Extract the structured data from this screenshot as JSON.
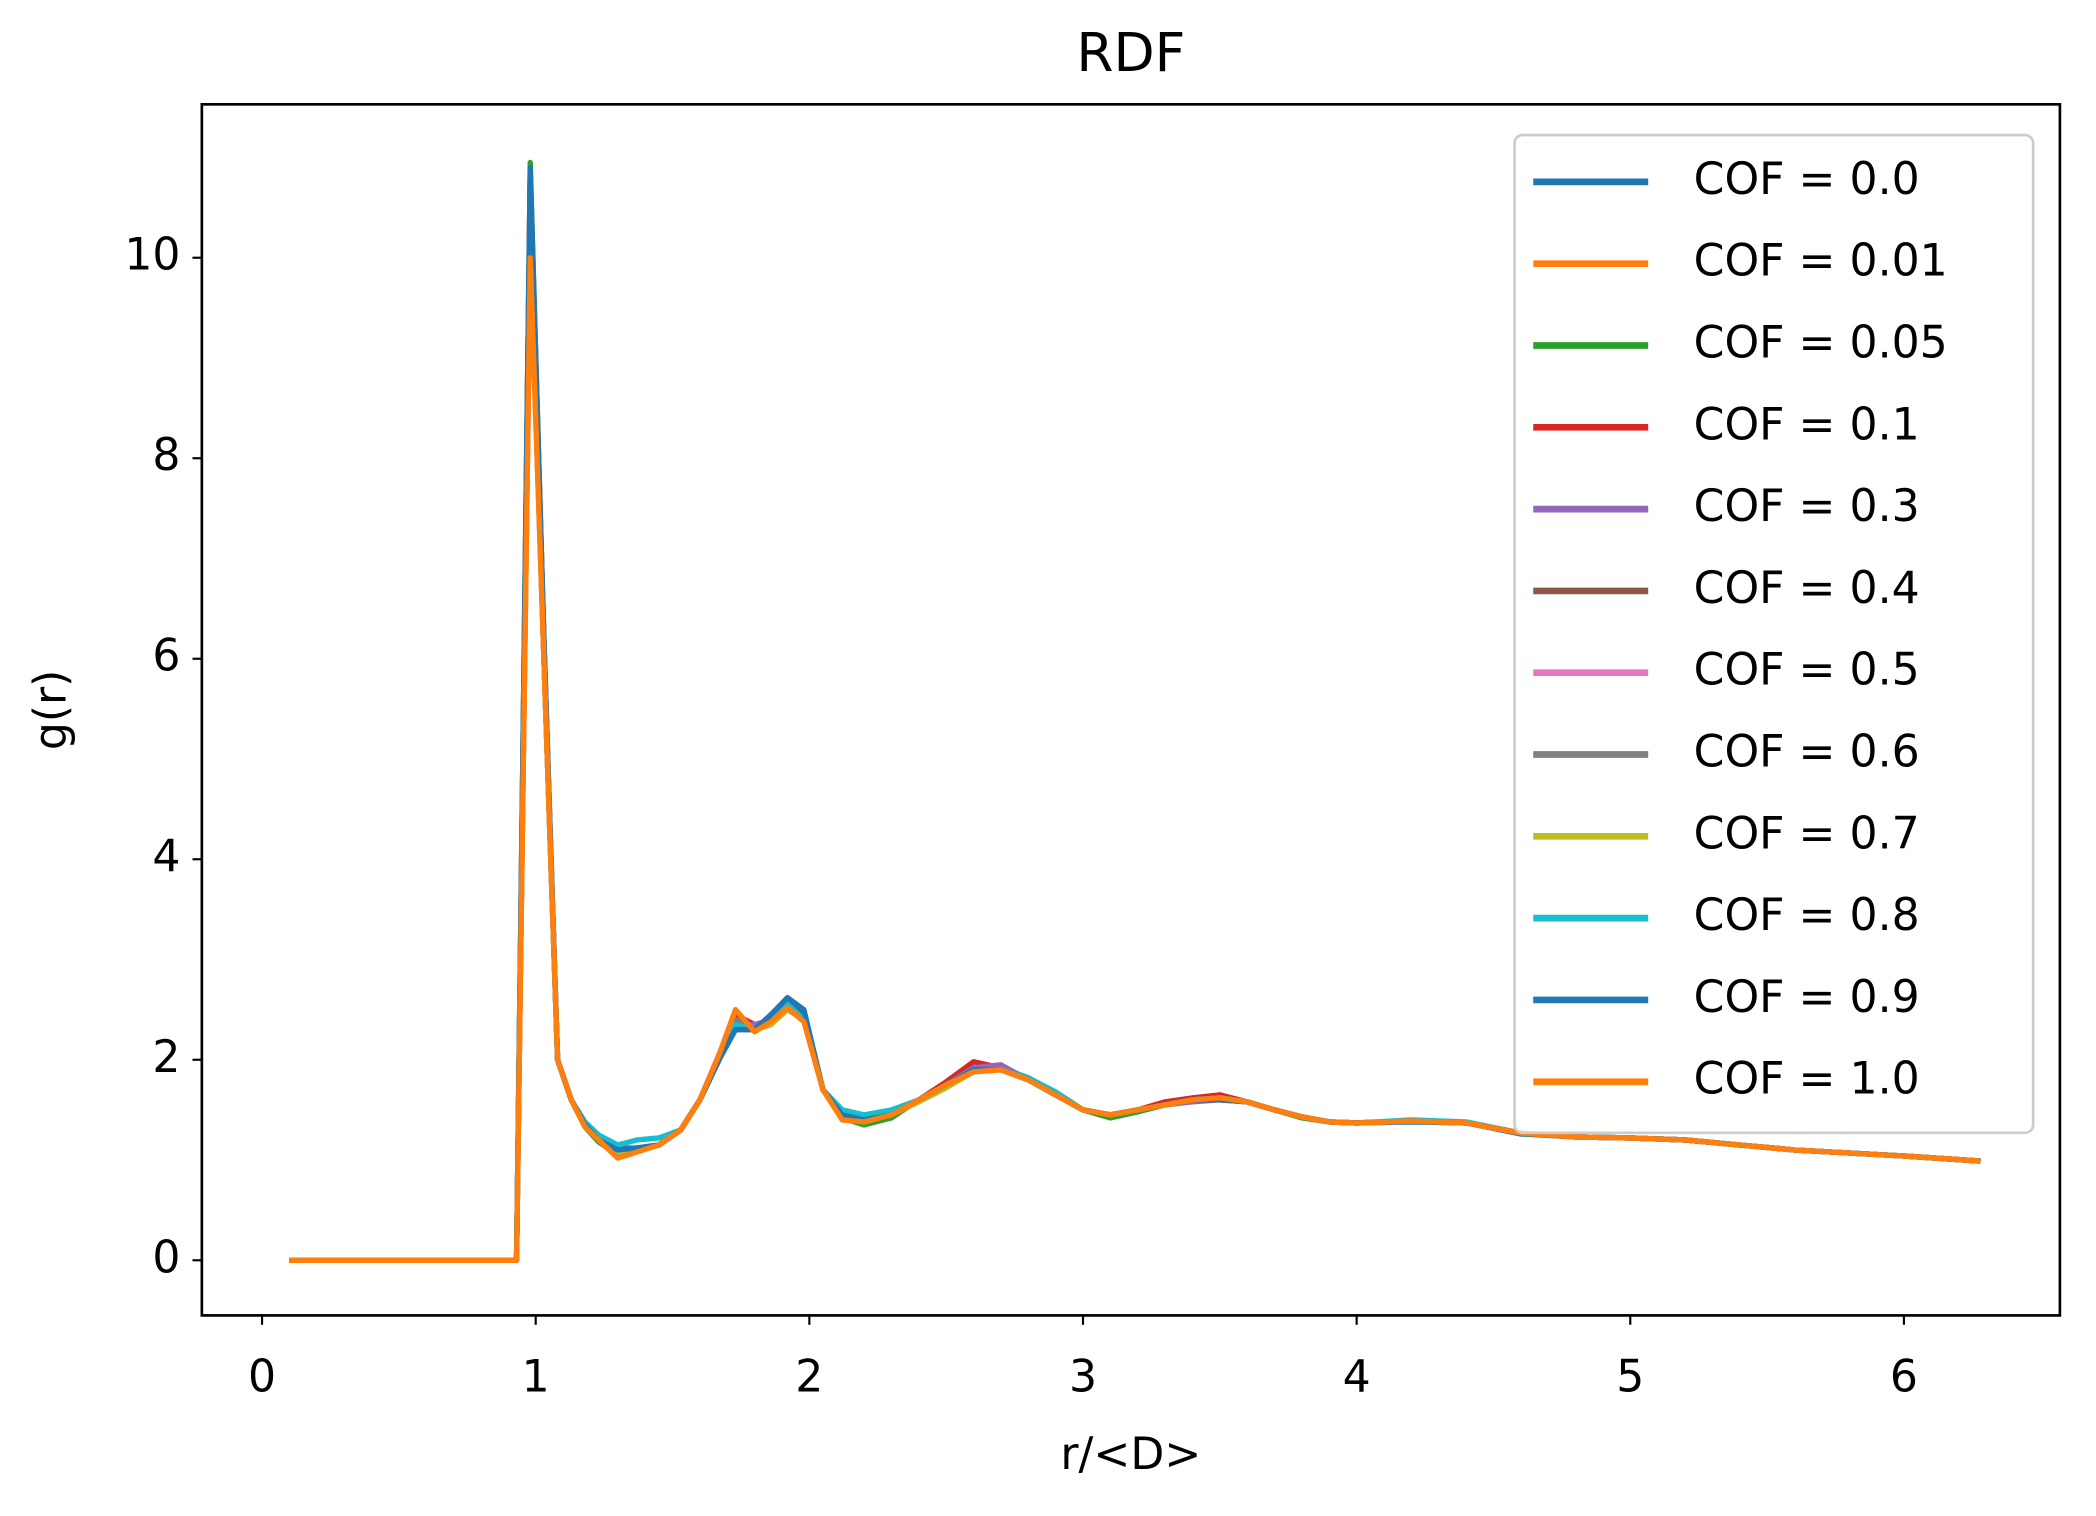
{
  "chart_data": {
    "type": "line",
    "title": "RDF",
    "xlabel": "r/<D>",
    "ylabel": "g(r)",
    "xlim": [
      -0.22,
      6.57
    ],
    "ylim": [
      -0.55,
      11.53
    ],
    "xticks": [
      0,
      1,
      2,
      3,
      4,
      5,
      6
    ],
    "yticks": [
      0,
      2,
      4,
      6,
      8,
      10
    ],
    "legend": "upper right",
    "grid": false,
    "x": [
      0.1,
      0.9,
      0.93,
      0.98,
      1.03,
      1.08,
      1.13,
      1.18,
      1.23,
      1.3,
      1.37,
      1.45,
      1.53,
      1.6,
      1.67,
      1.73,
      1.8,
      1.86,
      1.92,
      1.98,
      2.05,
      2.12,
      2.2,
      2.3,
      2.4,
      2.5,
      2.6,
      2.7,
      2.8,
      2.9,
      3.0,
      3.1,
      3.2,
      3.3,
      3.4,
      3.5,
      3.6,
      3.7,
      3.8,
      3.9,
      4.0,
      4.2,
      4.4,
      4.6,
      4.8,
      5.0,
      5.2,
      5.4,
      5.6,
      5.8,
      6.0,
      6.28
    ],
    "series": [
      {
        "name": "COF = 0.0",
        "color": "#1f77b4",
        "values": [
          0,
          0,
          0,
          10.1,
          6.0,
          2.0,
          1.6,
          1.35,
          1.2,
          1.12,
          1.12,
          1.15,
          1.3,
          1.6,
          2.0,
          2.35,
          2.3,
          2.45,
          2.6,
          2.45,
          1.7,
          1.45,
          1.4,
          1.45,
          1.6,
          1.75,
          1.9,
          1.9,
          1.8,
          1.65,
          1.5,
          1.45,
          1.5,
          1.55,
          1.6,
          1.6,
          1.58,
          1.5,
          1.43,
          1.38,
          1.37,
          1.38,
          1.37,
          1.26,
          1.23,
          1.22,
          1.2,
          1.15,
          1.1,
          1.07,
          1.04,
          0.99
        ]
      },
      {
        "name": "COF = 0.01",
        "color": "#ff7f0e",
        "values": [
          0,
          0,
          0,
          10.0,
          6.1,
          2.0,
          1.6,
          1.35,
          1.2,
          1.08,
          1.1,
          1.15,
          1.3,
          1.6,
          2.05,
          2.45,
          2.3,
          2.4,
          2.55,
          2.4,
          1.7,
          1.45,
          1.4,
          1.45,
          1.6,
          1.75,
          1.92,
          1.9,
          1.8,
          1.65,
          1.5,
          1.45,
          1.5,
          1.55,
          1.6,
          1.62,
          1.58,
          1.5,
          1.43,
          1.38,
          1.37,
          1.39,
          1.37,
          1.27,
          1.23,
          1.22,
          1.2,
          1.15,
          1.1,
          1.07,
          1.04,
          0.99
        ]
      },
      {
        "name": "COF = 0.05",
        "color": "#2ca02c",
        "values": [
          0,
          0,
          0,
          10.95,
          6.2,
          2.0,
          1.6,
          1.33,
          1.18,
          1.05,
          1.1,
          1.15,
          1.3,
          1.6,
          2.0,
          2.4,
          2.3,
          2.38,
          2.5,
          2.4,
          1.7,
          1.42,
          1.35,
          1.42,
          1.6,
          1.75,
          1.9,
          1.92,
          1.82,
          1.65,
          1.5,
          1.42,
          1.48,
          1.55,
          1.6,
          1.62,
          1.58,
          1.5,
          1.42,
          1.38,
          1.37,
          1.39,
          1.37,
          1.27,
          1.23,
          1.22,
          1.2,
          1.15,
          1.1,
          1.07,
          1.04,
          0.99
        ]
      },
      {
        "name": "COF = 0.1",
        "color": "#d62728",
        "values": [
          0,
          0,
          0,
          10.85,
          6.2,
          2.0,
          1.6,
          1.35,
          1.2,
          1.1,
          1.1,
          1.15,
          1.3,
          1.6,
          2.05,
          2.45,
          2.35,
          2.4,
          2.55,
          2.4,
          1.7,
          1.45,
          1.4,
          1.45,
          1.6,
          1.78,
          1.98,
          1.92,
          1.8,
          1.65,
          1.5,
          1.45,
          1.5,
          1.58,
          1.62,
          1.65,
          1.58,
          1.5,
          1.43,
          1.38,
          1.37,
          1.39,
          1.37,
          1.27,
          1.23,
          1.22,
          1.2,
          1.15,
          1.1,
          1.07,
          1.04,
          0.99
        ]
      },
      {
        "name": "COF = 0.3",
        "color": "#9467bd",
        "values": [
          0,
          0,
          0,
          10.5,
          6.1,
          2.0,
          1.6,
          1.35,
          1.2,
          1.1,
          1.12,
          1.15,
          1.3,
          1.6,
          2.0,
          2.35,
          2.35,
          2.4,
          2.55,
          2.4,
          1.7,
          1.45,
          1.4,
          1.45,
          1.6,
          1.75,
          1.92,
          1.95,
          1.8,
          1.65,
          1.5,
          1.45,
          1.5,
          1.55,
          1.58,
          1.6,
          1.58,
          1.5,
          1.43,
          1.38,
          1.37,
          1.39,
          1.37,
          1.27,
          1.23,
          1.22,
          1.2,
          1.15,
          1.1,
          1.07,
          1.04,
          0.99
        ]
      },
      {
        "name": "COF = 0.4",
        "color": "#8c564b",
        "values": [
          0,
          0,
          0,
          10.4,
          6.0,
          2.0,
          1.6,
          1.35,
          1.2,
          1.1,
          1.1,
          1.15,
          1.3,
          1.6,
          2.0,
          2.38,
          2.3,
          2.4,
          2.55,
          2.4,
          1.7,
          1.45,
          1.4,
          1.45,
          1.6,
          1.75,
          1.9,
          1.9,
          1.8,
          1.65,
          1.5,
          1.45,
          1.5,
          1.55,
          1.6,
          1.62,
          1.58,
          1.5,
          1.43,
          1.38,
          1.37,
          1.39,
          1.37,
          1.27,
          1.23,
          1.22,
          1.2,
          1.15,
          1.1,
          1.07,
          1.04,
          0.99
        ]
      },
      {
        "name": "COF = 0.5",
        "color": "#e377c2",
        "values": [
          0,
          0,
          0,
          10.2,
          6.0,
          2.0,
          1.6,
          1.35,
          1.2,
          1.1,
          1.1,
          1.15,
          1.3,
          1.6,
          2.0,
          2.4,
          2.3,
          2.4,
          2.55,
          2.4,
          1.7,
          1.45,
          1.4,
          1.45,
          1.6,
          1.75,
          1.9,
          1.9,
          1.8,
          1.65,
          1.5,
          1.45,
          1.5,
          1.55,
          1.6,
          1.62,
          1.58,
          1.5,
          1.43,
          1.38,
          1.37,
          1.39,
          1.37,
          1.27,
          1.23,
          1.22,
          1.2,
          1.15,
          1.1,
          1.07,
          1.04,
          0.99
        ]
      },
      {
        "name": "COF = 0.6",
        "color": "#7f7f7f",
        "values": [
          0,
          0,
          0,
          10.3,
          6.0,
          2.0,
          1.6,
          1.35,
          1.2,
          1.1,
          1.1,
          1.15,
          1.3,
          1.6,
          2.0,
          2.4,
          2.3,
          2.4,
          2.55,
          2.4,
          1.7,
          1.45,
          1.4,
          1.45,
          1.6,
          1.75,
          1.9,
          1.9,
          1.8,
          1.65,
          1.5,
          1.45,
          1.5,
          1.55,
          1.6,
          1.62,
          1.58,
          1.5,
          1.43,
          1.38,
          1.37,
          1.39,
          1.37,
          1.27,
          1.23,
          1.22,
          1.2,
          1.15,
          1.1,
          1.07,
          1.04,
          0.99
        ]
      },
      {
        "name": "COF = 0.7",
        "color": "#bcbd22",
        "values": [
          0,
          0,
          0,
          10.3,
          6.0,
          2.0,
          1.6,
          1.35,
          1.2,
          1.08,
          1.1,
          1.15,
          1.3,
          1.6,
          2.0,
          2.3,
          2.3,
          2.35,
          2.5,
          2.4,
          1.7,
          1.45,
          1.4,
          1.45,
          1.58,
          1.72,
          1.88,
          1.9,
          1.8,
          1.65,
          1.5,
          1.45,
          1.5,
          1.55,
          1.6,
          1.62,
          1.58,
          1.5,
          1.43,
          1.38,
          1.37,
          1.39,
          1.37,
          1.27,
          1.23,
          1.22,
          1.2,
          1.15,
          1.1,
          1.07,
          1.04,
          0.99
        ]
      },
      {
        "name": "COF = 0.8",
        "color": "#17becf",
        "values": [
          0,
          0,
          0,
          10.6,
          6.1,
          2.0,
          1.6,
          1.38,
          1.25,
          1.15,
          1.2,
          1.22,
          1.3,
          1.6,
          2.0,
          2.35,
          2.3,
          2.4,
          2.55,
          2.4,
          1.7,
          1.5,
          1.45,
          1.5,
          1.6,
          1.75,
          1.9,
          1.9,
          1.82,
          1.68,
          1.5,
          1.45,
          1.5,
          1.55,
          1.6,
          1.62,
          1.58,
          1.5,
          1.43,
          1.38,
          1.37,
          1.4,
          1.38,
          1.27,
          1.23,
          1.22,
          1.2,
          1.15,
          1.1,
          1.07,
          1.04,
          0.99
        ]
      },
      {
        "name": "COF = 0.9",
        "color": "#1f77b4",
        "values": [
          0,
          0,
          0,
          10.9,
          6.2,
          2.0,
          1.6,
          1.35,
          1.2,
          1.1,
          1.12,
          1.15,
          1.3,
          1.6,
          2.0,
          2.3,
          2.3,
          2.45,
          2.62,
          2.5,
          1.7,
          1.45,
          1.4,
          1.45,
          1.6,
          1.75,
          1.9,
          1.9,
          1.8,
          1.65,
          1.5,
          1.45,
          1.5,
          1.55,
          1.6,
          1.6,
          1.58,
          1.5,
          1.43,
          1.38,
          1.37,
          1.39,
          1.37,
          1.27,
          1.23,
          1.22,
          1.2,
          1.15,
          1.1,
          1.07,
          1.04,
          0.99
        ]
      },
      {
        "name": "COF = 1.0",
        "color": "#ff7f0e",
        "values": [
          0,
          0,
          0,
          10.0,
          6.0,
          2.0,
          1.6,
          1.33,
          1.2,
          1.02,
          1.08,
          1.15,
          1.3,
          1.6,
          2.05,
          2.5,
          2.28,
          2.38,
          2.52,
          2.38,
          1.7,
          1.4,
          1.38,
          1.45,
          1.6,
          1.75,
          1.88,
          1.9,
          1.8,
          1.65,
          1.5,
          1.45,
          1.5,
          1.55,
          1.6,
          1.62,
          1.58,
          1.5,
          1.43,
          1.38,
          1.37,
          1.39,
          1.37,
          1.27,
          1.23,
          1.22,
          1.2,
          1.15,
          1.1,
          1.07,
          1.04,
          0.99
        ]
      }
    ]
  }
}
